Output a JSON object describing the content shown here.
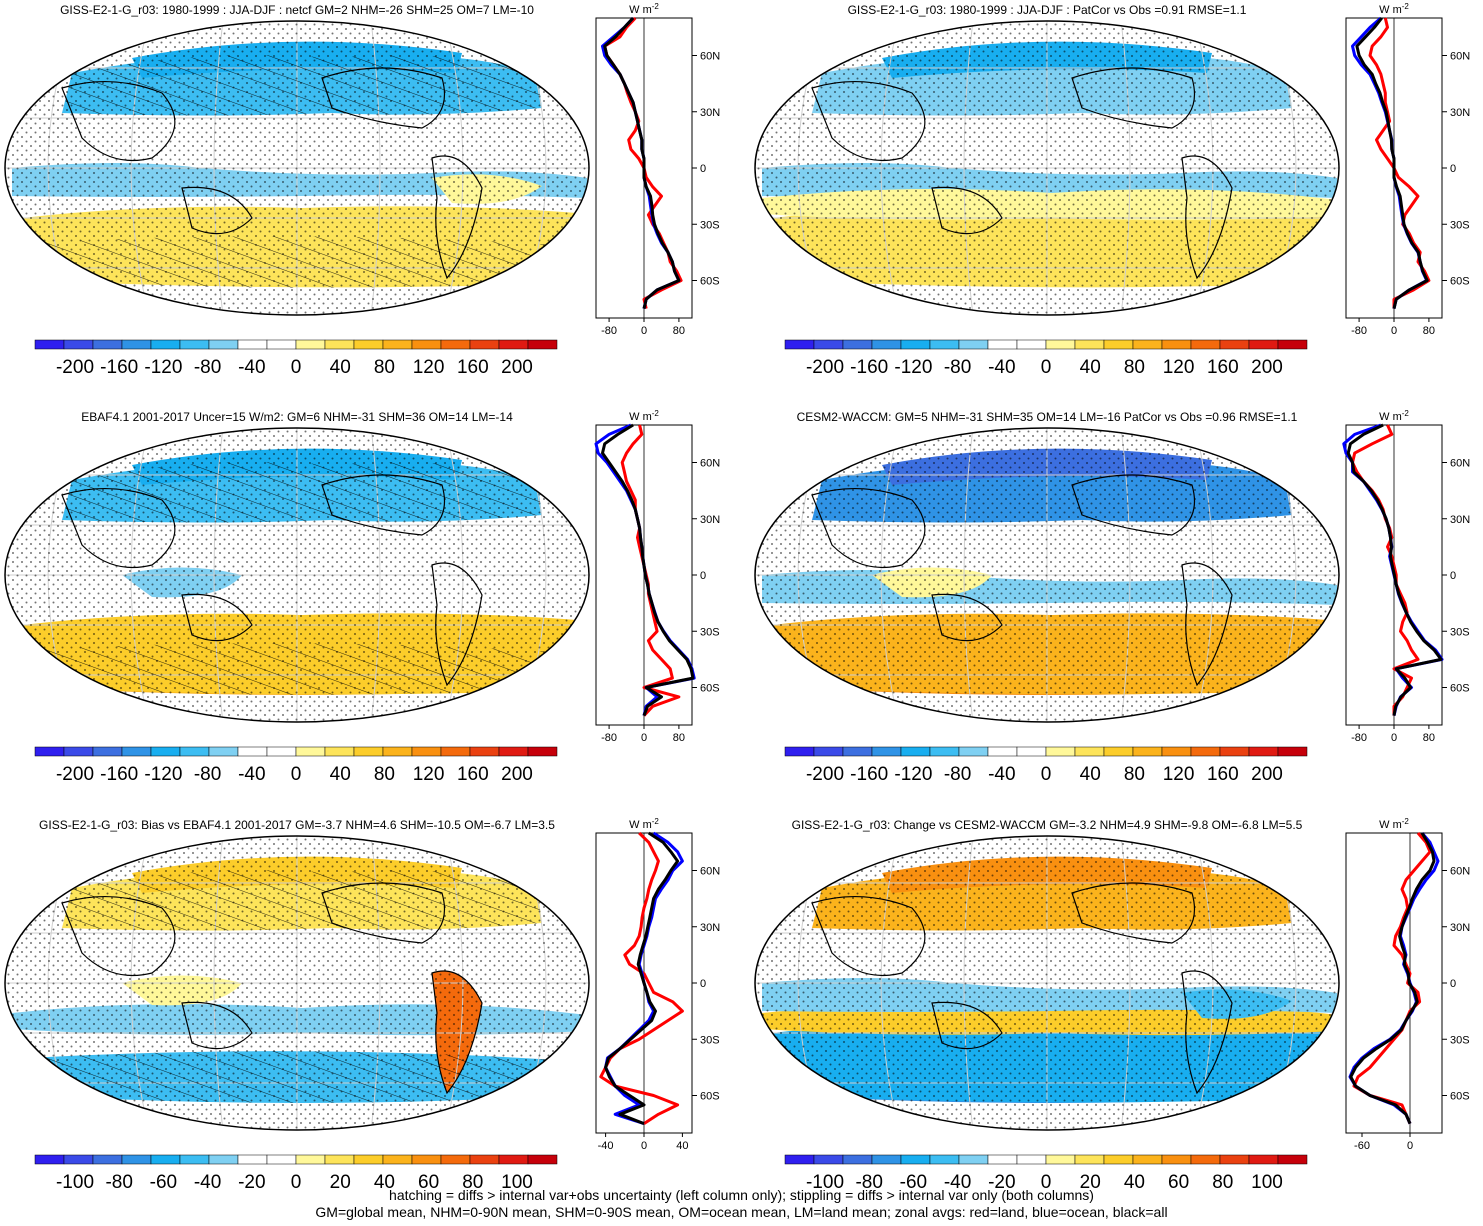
{
  "figure": {
    "footnote": [
      "hatching = diffs > internal var+obs uncertainty (left column only); stippling = diffs > internal var only (both columns)",
      "GM=global mean, NHM=0-90N mean, SHM=0-90S mean, OM=ocean mean, LM=land mean; zonal avgs: red=land, blue=ocean, black=all"
    ],
    "lat_labels": [
      "60N",
      "30N",
      "0",
      "30S",
      "60S"
    ],
    "units_label": "W m",
    "units_sup": "-2"
  },
  "colors": {
    "zonal_land": "#ff0000",
    "zonal_ocean": "#0000ff",
    "zonal_all": "#000000",
    "colorbar": [
      "#2f1fef",
      "#3a4ae8",
      "#3c6fe0",
      "#2f93e6",
      "#18aef0",
      "#3cbdf2",
      "#7fd0f2",
      "#ffffff",
      "#ffffff",
      "#fff89a",
      "#fde45a",
      "#fccd2a",
      "#fbb31c",
      "#f99010",
      "#f46a0c",
      "#ea4110",
      "#e01a12",
      "#c6000a"
    ]
  },
  "chart_data": [
    {
      "type": "heatmap",
      "title": "GISS-E2-1-G_r03: 1980-1999 : JJA-DJF : netcf GM=2 NHM=-26 SHM=25 OM=7 LM=-10",
      "colorbar_ticks": [
        "-200",
        "-160",
        "-120",
        "-80",
        "-40",
        "0",
        "40",
        "80",
        "120",
        "160",
        "200"
      ],
      "zonal_xticks": [
        "-80",
        "0",
        "80"
      ],
      "zonal_xlim": [
        -110,
        110
      ],
      "hatched": true,
      "map_pattern": "A",
      "zonal": {
        "lat": [
          80,
          75,
          70,
          65,
          60,
          55,
          50,
          45,
          40,
          35,
          30,
          25,
          20,
          15,
          10,
          5,
          0,
          -5,
          -10,
          -15,
          -20,
          -25,
          -30,
          -35,
          -40,
          -45,
          -50,
          -55,
          -60,
          -65,
          -70,
          -75
        ],
        "land": [
          -20,
          -40,
          -55,
          -90,
          -85,
          -70,
          -55,
          -45,
          -38,
          -30,
          -20,
          -12,
          -20,
          -35,
          -30,
          -12,
          0,
          5,
          20,
          40,
          25,
          10,
          20,
          35,
          45,
          55,
          60,
          75,
          85,
          40,
          0,
          5
        ],
        "ocean": [
          -25,
          -45,
          -70,
          -95,
          -90,
          -75,
          -55,
          -45,
          -35,
          -25,
          -20,
          -15,
          -10,
          -5,
          -5,
          0,
          0,
          0,
          5,
          12,
          15,
          18,
          22,
          30,
          40,
          55,
          65,
          70,
          80,
          30,
          5,
          0
        ],
        "all": [
          -25,
          -45,
          -65,
          -90,
          -85,
          -70,
          -55,
          -45,
          -35,
          -25,
          -20,
          -15,
          -10,
          -5,
          -5,
          0,
          0,
          0,
          5,
          15,
          18,
          20,
          24,
          32,
          42,
          55,
          65,
          70,
          80,
          30,
          5,
          0
        ]
      }
    },
    {
      "type": "heatmap",
      "title": "GISS-E2-1-G_r03: 1980-1999 : JJA-DJF : PatCor vs Obs =0.91 RMSE=1.1",
      "colorbar_ticks": [
        "-200",
        "-160",
        "-120",
        "-80",
        "-40",
        "0",
        "40",
        "80",
        "120",
        "160",
        "200"
      ],
      "zonal_xticks": [
        "-80",
        "0",
        "80"
      ],
      "zonal_xlim": [
        -110,
        110
      ],
      "hatched": false,
      "map_pattern": "B",
      "zonal": {
        "lat": [
          80,
          75,
          70,
          65,
          60,
          55,
          50,
          45,
          40,
          35,
          30,
          25,
          20,
          15,
          10,
          5,
          0,
          -5,
          -10,
          -15,
          -20,
          -25,
          -30,
          -35,
          -40,
          -45,
          -50,
          -55,
          -60,
          -65,
          -70,
          -75
        ],
        "land": [
          -20,
          -15,
          -30,
          -50,
          -55,
          -40,
          -30,
          -25,
          -20,
          -20,
          -15,
          -10,
          -25,
          -40,
          -30,
          -15,
          0,
          10,
          35,
          55,
          40,
          25,
          20,
          35,
          45,
          60,
          55,
          70,
          80,
          45,
          0,
          0
        ],
        "ocean": [
          -30,
          -55,
          -75,
          -95,
          -90,
          -75,
          -55,
          -45,
          -35,
          -28,
          -20,
          -15,
          -10,
          -5,
          -5,
          0,
          0,
          0,
          5,
          12,
          15,
          18,
          22,
          30,
          40,
          55,
          60,
          65,
          75,
          35,
          5,
          0
        ],
        "all": [
          -28,
          -45,
          -65,
          -85,
          -80,
          -68,
          -50,
          -42,
          -32,
          -26,
          -18,
          -14,
          -10,
          -6,
          -5,
          0,
          0,
          0,
          6,
          14,
          17,
          20,
          23,
          31,
          41,
          56,
          60,
          66,
          76,
          35,
          5,
          0
        ]
      }
    },
    {
      "type": "heatmap",
      "title": "EBAF4.1 2001-2017 Uncer=15 W/m2: GM=6 NHM=-31 SHM=36 OM=14 LM=-14",
      "colorbar_ticks": [
        "-200",
        "-160",
        "-120",
        "-80",
        "-40",
        "0",
        "40",
        "80",
        "120",
        "160",
        "200"
      ],
      "zonal_xticks": [
        "-80",
        "0",
        "80"
      ],
      "zonal_xlim": [
        -110,
        110
      ],
      "hatched": true,
      "map_pattern": "C",
      "zonal": {
        "lat": [
          80,
          75,
          70,
          65,
          60,
          55,
          50,
          45,
          40,
          35,
          30,
          25,
          20,
          15,
          10,
          5,
          0,
          -5,
          -10,
          -15,
          -20,
          -25,
          -30,
          -35,
          -40,
          -45,
          -50,
          -55,
          -60,
          -65,
          -70,
          -75
        ],
        "land": [
          -10,
          -5,
          -25,
          -40,
          -50,
          -45,
          -40,
          -30,
          -20,
          -20,
          -15,
          -10,
          -15,
          -10,
          -5,
          0,
          5,
          10,
          10,
          15,
          20,
          25,
          30,
          10,
          20,
          40,
          60,
          65,
          0,
          80,
          20,
          0
        ],
        "ocean": [
          -30,
          -80,
          -110,
          -105,
          -85,
          -70,
          -55,
          -40,
          -30,
          -20,
          -15,
          -10,
          -8,
          -5,
          -3,
          0,
          3,
          8,
          12,
          18,
          25,
          32,
          45,
          60,
          80,
          100,
          110,
          115,
          5,
          30,
          5,
          0
        ],
        "all": [
          -25,
          -60,
          -90,
          -95,
          -80,
          -65,
          -50,
          -38,
          -28,
          -20,
          -15,
          -10,
          -8,
          -5,
          -3,
          0,
          3,
          8,
          12,
          18,
          24,
          32,
          44,
          58,
          78,
          98,
          108,
          112,
          5,
          40,
          8,
          0
        ]
      }
    },
    {
      "type": "heatmap",
      "title": "CESM2-WACCM: GM=5 NHM=-31 SHM=35 OM=14 LM=-16 PatCor vs Obs =0.96 RMSE=1.1",
      "colorbar_ticks": [
        "-200",
        "-160",
        "-120",
        "-80",
        "-40",
        "0",
        "40",
        "80",
        "120",
        "160",
        "200"
      ],
      "zonal_xticks": [
        "-80",
        "0",
        "80"
      ],
      "zonal_xlim": [
        -110,
        110
      ],
      "hatched": false,
      "map_pattern": "D",
      "zonal": {
        "lat": [
          80,
          75,
          70,
          65,
          60,
          55,
          50,
          45,
          40,
          35,
          30,
          25,
          20,
          15,
          10,
          5,
          0,
          -5,
          -10,
          -15,
          -20,
          -25,
          -30,
          -35,
          -40,
          -45,
          -50,
          -55,
          -60,
          -65,
          -70,
          -75
        ],
        "land": [
          -15,
          -5,
          -50,
          -90,
          -95,
          -85,
          -70,
          -50,
          -35,
          -25,
          -20,
          -10,
          -5,
          -15,
          -5,
          0,
          5,
          5,
          15,
          25,
          30,
          20,
          15,
          30,
          40,
          55,
          0,
          40,
          30,
          20,
          0,
          0
        ],
        "ocean": [
          -30,
          -90,
          -115,
          -110,
          -95,
          -95,
          -70,
          -55,
          -40,
          -28,
          -18,
          -12,
          -8,
          -5,
          -10,
          -5,
          0,
          5,
          10,
          18,
          28,
          40,
          55,
          70,
          95,
          110,
          5,
          20,
          40,
          15,
          5,
          0
        ],
        "all": [
          -25,
          -70,
          -100,
          -105,
          -95,
          -92,
          -70,
          -52,
          -38,
          -27,
          -18,
          -12,
          -8,
          -6,
          -8,
          -4,
          1,
          5,
          11,
          19,
          28,
          38,
          52,
          68,
          92,
          108,
          5,
          25,
          38,
          16,
          4,
          0
        ]
      }
    },
    {
      "type": "heatmap",
      "title": "GISS-E2-1-G_r03: Bias vs EBAF4.1 2001-2017 GM=-3.7 NHM=4.6 SHM=-10.5 OM=-6.7 LM=3.5",
      "colorbar_ticks": [
        "-100",
        "-80",
        "-60",
        "-40",
        "-20",
        "0",
        "20",
        "40",
        "60",
        "80",
        "100"
      ],
      "zonal_xticks": [
        "-40",
        "0",
        "40"
      ],
      "zonal_xlim": [
        -50,
        50
      ],
      "hatched": true,
      "map_pattern": "E",
      "zonal": {
        "lat": [
          80,
          75,
          70,
          65,
          60,
          55,
          50,
          45,
          40,
          35,
          30,
          25,
          20,
          15,
          10,
          5,
          0,
          -5,
          -10,
          -15,
          -20,
          -25,
          -30,
          -35,
          -40,
          -45,
          -50,
          -55,
          -60,
          -65,
          -70,
          -75
        ],
        "land": [
          -5,
          5,
          10,
          15,
          12,
          8,
          5,
          3,
          0,
          -2,
          -3,
          -5,
          -10,
          -20,
          -15,
          0,
          5,
          10,
          30,
          40,
          25,
          10,
          -5,
          -25,
          -35,
          -40,
          -45,
          -30,
          10,
          35,
          15,
          0
        ],
        "ocean": [
          10,
          25,
          35,
          40,
          30,
          25,
          18,
          12,
          10,
          8,
          5,
          3,
          0,
          -3,
          -5,
          -2,
          0,
          3,
          5,
          10,
          5,
          -5,
          -15,
          -25,
          -38,
          -40,
          -35,
          -30,
          -20,
          -5,
          -30,
          0
        ],
        "all": [
          5,
          20,
          28,
          35,
          28,
          22,
          15,
          10,
          8,
          6,
          4,
          2,
          -1,
          -4,
          -6,
          -3,
          0,
          3,
          6,
          12,
          8,
          -3,
          -14,
          -25,
          -37,
          -40,
          -36,
          -30,
          -15,
          0,
          -25,
          0
        ]
      }
    },
    {
      "type": "heatmap",
      "title": "GISS-E2-1-G_r03: Change vs CESM2-WACCM GM=-3.2 NHM=4.9 SHM=-9.8 OM=-6.8 LM=5.5",
      "colorbar_ticks": [
        "-100",
        "-80",
        "-60",
        "-40",
        "-20",
        "0",
        "20",
        "40",
        "60",
        "80",
        "100"
      ],
      "zonal_xticks": [
        "-60",
        "0"
      ],
      "zonal_xlim": [
        -80,
        40
      ],
      "hatched": false,
      "map_pattern": "F",
      "zonal": {
        "lat": [
          80,
          75,
          70,
          65,
          60,
          55,
          50,
          45,
          40,
          35,
          30,
          25,
          20,
          15,
          10,
          5,
          0,
          -5,
          -10,
          -15,
          -20,
          -25,
          -30,
          -35,
          -40,
          -45,
          -50,
          -55,
          -60,
          -65,
          -70,
          -75
        ],
        "land": [
          10,
          20,
          25,
          15,
          5,
          -5,
          -10,
          -5,
          -3,
          -8,
          -12,
          -18,
          -20,
          -10,
          -5,
          0,
          -3,
          10,
          12,
          0,
          -5,
          -10,
          -20,
          -30,
          -40,
          -50,
          -65,
          -70,
          -50,
          -10,
          -5,
          0
        ],
        "ocean": [
          15,
          25,
          30,
          35,
          30,
          20,
          12,
          5,
          0,
          -5,
          -10,
          -12,
          -8,
          -5,
          -8,
          -3,
          0,
          5,
          8,
          3,
          -5,
          -12,
          -25,
          -45,
          -60,
          -70,
          -75,
          -68,
          -50,
          -20,
          -5,
          0
        ],
        "all": [
          15,
          22,
          28,
          30,
          25,
          15,
          8,
          3,
          -1,
          -6,
          -10,
          -13,
          -10,
          -6,
          -7,
          -2,
          -1,
          6,
          9,
          2,
          -5,
          -11,
          -24,
          -42,
          -58,
          -68,
          -74,
          -68,
          -50,
          -18,
          -5,
          0
        ]
      }
    }
  ]
}
